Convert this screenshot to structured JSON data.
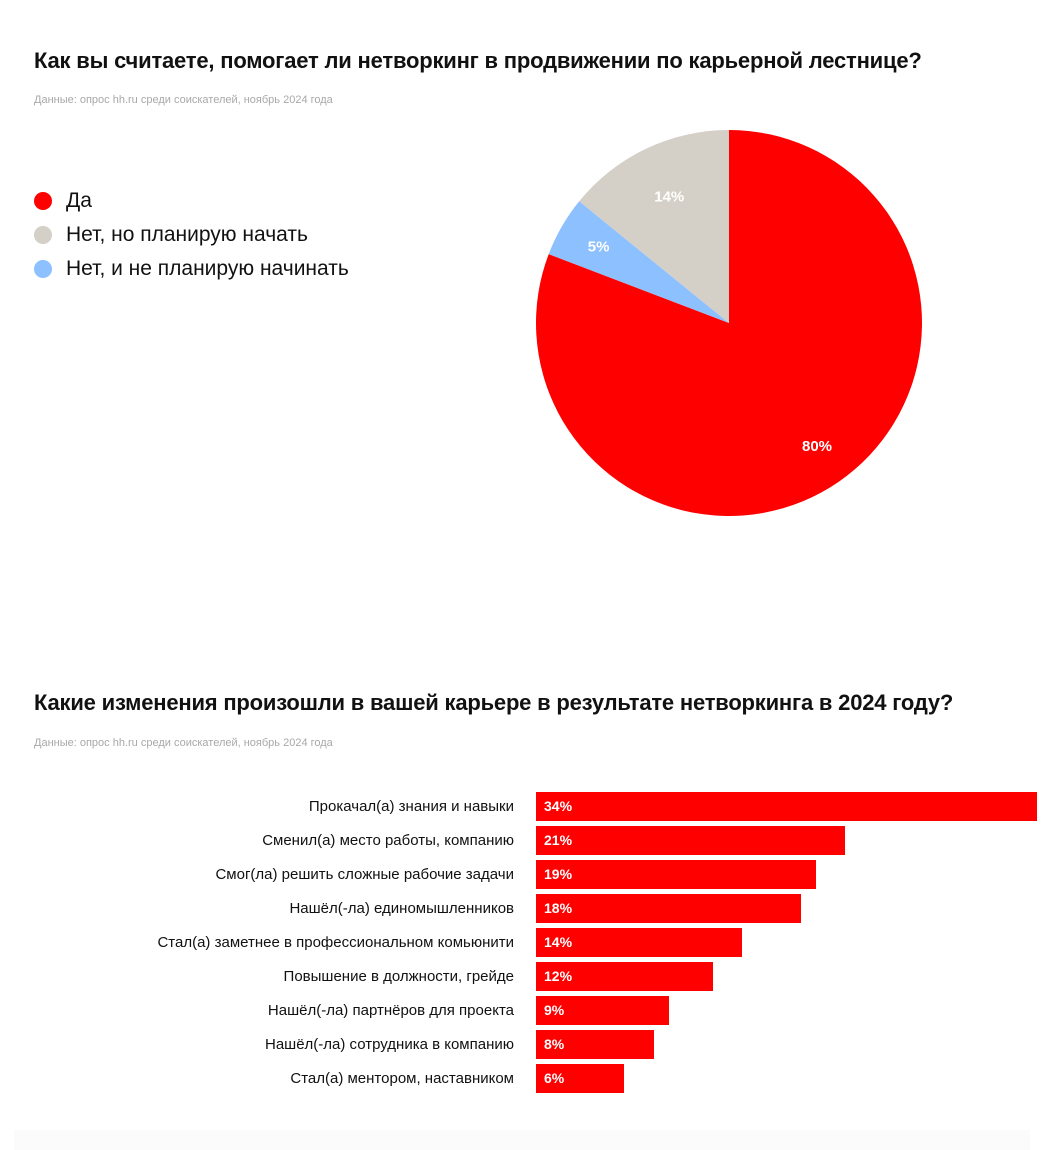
{
  "colors": {
    "red": "#ff0000",
    "gray": "#d5d0c7",
    "blue": "#8cc0ff",
    "text": "#111111",
    "source": "#a8a8a8"
  },
  "chart_data": [
    {
      "type": "pie",
      "title": "Как вы считаете, помогает ли нетворкинг в продвижении по карьерной лестнице?",
      "subtitle": "Данные: опрос hh.ru среди соискателей, ноябрь 2024 года",
      "legend_position": "left",
      "slices": [
        {
          "label": "Да",
          "value": 80,
          "value_label": "80%",
          "color": "#ff0000"
        },
        {
          "label": "Нет, но планирую начать",
          "value": 14,
          "value_label": "14%",
          "color": "#d5d0c7"
        },
        {
          "label": "Нет, и не планирую начинать",
          "value": 5,
          "value_label": "5%",
          "color": "#8cc0ff"
        }
      ],
      "slice_order_clockwise_from_top": [
        0,
        2,
        1
      ]
    },
    {
      "type": "bar",
      "orientation": "horizontal",
      "title": "Какие изменения произошли в вашей карьере в результате нетворкинга в 2024 году?",
      "subtitle": "Данные: опрос hh.ru среди соискателей, ноябрь 2024 года",
      "xlim": [
        0,
        34
      ],
      "bar_color": "#ff0000",
      "categories": [
        "Прокачал(а) знания и навыки",
        "Сменил(а) место работы, компанию",
        "Смог(ла) решить сложные рабочие задачи",
        "Нашёл(-ла) единомышленников",
        "Стал(а) заметнее в профессиональном комьюнити",
        "Повышение в должности, грейде",
        "Нашёл(-ла) партнёров для проекта",
        "Нашёл(-ла) сотрудника в компанию",
        "Стал(а) ментором, наставником"
      ],
      "values": [
        34,
        21,
        19,
        18,
        14,
        12,
        9,
        8,
        6
      ],
      "value_labels": [
        "34%",
        "21%",
        "19%",
        "18%",
        "14%",
        "12%",
        "9%",
        "8%",
        "6%"
      ]
    }
  ]
}
